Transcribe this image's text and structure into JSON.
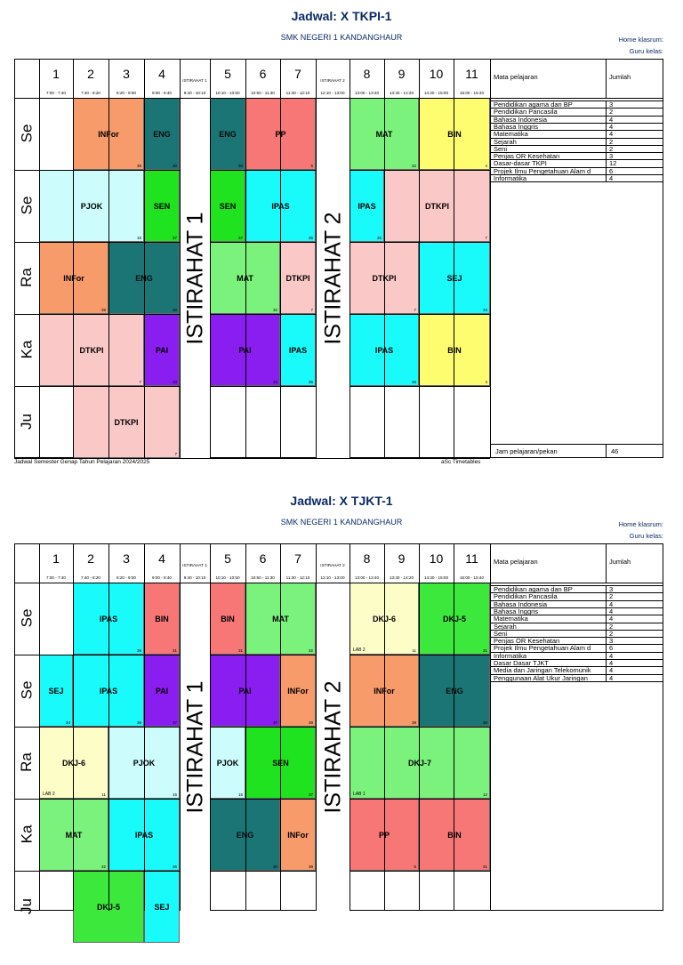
{
  "sheets": [
    {
      "title": "Jadwal: X TKPI-1",
      "school": "SMK NEGERI 1 KANDANGHAUR",
      "homeroom_label": "Home klasrum:",
      "teacher_label": "Guru kelas:",
      "periods": [
        {
          "n": "1",
          "t": "7:00 - 7:40"
        },
        {
          "n": "2",
          "t": "7:40 - 8:20"
        },
        {
          "n": "3",
          "t": "8:20 - 9:00"
        },
        {
          "n": "4",
          "t": "9:00 - 9:40"
        },
        {
          "n": "ISTIRAHAT 1",
          "t": "9:40 - 10:10",
          "brk": true
        },
        {
          "n": "5",
          "t": "10:10 - 10:50"
        },
        {
          "n": "6",
          "t": "10:50 - 11:30"
        },
        {
          "n": "7",
          "t": "11:30 - 12:10"
        },
        {
          "n": "ISTIRAHAT 2",
          "t": "12:10 - 13:00",
          "brk": true
        },
        {
          "n": "8",
          "t": "13:00 - 13:40"
        },
        {
          "n": "9",
          "t": "13:40 - 14:20"
        },
        {
          "n": "10",
          "t": "14:20 - 15:00"
        },
        {
          "n": "11",
          "t": "15:00 - 15:40"
        }
      ],
      "days": [
        "Se",
        "Se",
        "Ra",
        "Ka",
        "Ju"
      ],
      "break_labels": [
        "ISTIRAHAT 1",
        "ISTIRAHAT 2"
      ],
      "lessons": [
        {
          "d": 0,
          "s": 1,
          "e": 3,
          "name": "INFor",
          "room": "39",
          "color": "#f89b6b"
        },
        {
          "d": 0,
          "s": 3,
          "e": 4,
          "name": "ENG",
          "room": "30",
          "color": "#1b7575"
        },
        {
          "d": 0,
          "s": 5,
          "e": 6,
          "name": "ENG",
          "room": "30",
          "color": "#1b7575"
        },
        {
          "d": 0,
          "s": 6,
          "e": 8,
          "name": "PP",
          "room": "5",
          "color": "#f77777"
        },
        {
          "d": 0,
          "s": 9,
          "e": 11,
          "name": "MAT",
          "room": "32",
          "color": "#7bf27b"
        },
        {
          "d": 0,
          "s": 11,
          "e": 13,
          "name": "BIN",
          "room": "4",
          "color": "#fdfd6f"
        },
        {
          "d": 1,
          "s": 0,
          "e": 3,
          "name": "PJOK",
          "room": "15",
          "color": "#ccfcfc"
        },
        {
          "d": 1,
          "s": 3,
          "e": 4,
          "name": "SEN",
          "room": "37",
          "color": "#1ee31e"
        },
        {
          "d": 1,
          "s": 5,
          "e": 6,
          "name": "SEN",
          "room": "37",
          "color": "#1ee31e"
        },
        {
          "d": 1,
          "s": 6,
          "e": 8,
          "name": "IPAS",
          "room": "36",
          "color": "#19fafa"
        },
        {
          "d": 1,
          "s": 9,
          "e": 10,
          "name": "IPAS",
          "room": "36",
          "color": "#19fafa"
        },
        {
          "d": 1,
          "s": 10,
          "e": 13,
          "name": "DTKPI",
          "room": "7",
          "color": "#fbc8c8"
        },
        {
          "d": 2,
          "s": 0,
          "e": 2,
          "name": "INFor",
          "room": "39",
          "color": "#f89b6b"
        },
        {
          "d": 2,
          "s": 2,
          "e": 4,
          "name": "ENG",
          "room": "30",
          "color": "#1b7575"
        },
        {
          "d": 2,
          "s": 5,
          "e": 7,
          "name": "MAT",
          "room": "32",
          "color": "#7bf27b"
        },
        {
          "d": 2,
          "s": 7,
          "e": 8,
          "name": "DTKPI",
          "room": "7",
          "color": "#fbc8c8"
        },
        {
          "d": 2,
          "s": 9,
          "e": 11,
          "name": "DTKPI",
          "room": "7",
          "color": "#fbc8c8"
        },
        {
          "d": 2,
          "s": 11,
          "e": 13,
          "name": "SEJ",
          "room": "34",
          "color": "#19fafa"
        },
        {
          "d": 3,
          "s": 0,
          "e": 3,
          "name": "DTKPI",
          "room": "7",
          "color": "#fbc8c8"
        },
        {
          "d": 3,
          "s": 3,
          "e": 4,
          "name": "PAI",
          "room": "33",
          "color": "#8a1ef0"
        },
        {
          "d": 3,
          "s": 5,
          "e": 7,
          "name": "PAI",
          "room": "33",
          "color": "#8a1ef0"
        },
        {
          "d": 3,
          "s": 7,
          "e": 8,
          "name": "IPAS",
          "room": "36",
          "color": "#19fafa"
        },
        {
          "d": 3,
          "s": 9,
          "e": 11,
          "name": "IPAS",
          "room": "36",
          "color": "#19fafa"
        },
        {
          "d": 3,
          "s": 11,
          "e": 13,
          "name": "BIN",
          "room": "4",
          "color": "#fdfd6f"
        },
        {
          "d": 4,
          "s": 1,
          "e": 4,
          "name": "DTKPI",
          "room": "7",
          "color": "#fbc8c8"
        }
      ],
      "subjects_header": "Mata pelajaran",
      "count_header": "Jumlah",
      "subjects": [
        {
          "n": "Pendidikan agama dan BP",
          "c": "3"
        },
        {
          "n": "Pendidikan Pancasila",
          "c": "2"
        },
        {
          "n": "Bahasa Indonesia",
          "c": "4"
        },
        {
          "n": "Bahasa Inggris",
          "c": "4"
        },
        {
          "n": "Matematika",
          "c": "4"
        },
        {
          "n": "Sejarah",
          "c": "2"
        },
        {
          "n": "Seni",
          "c": "2"
        },
        {
          "n": "Penjas OR Kesehatan",
          "c": "3"
        },
        {
          "n": "Dasar-dasar TKPI",
          "c": "12"
        },
        {
          "n": "Projek Ilmu Pengetahuan Alam d",
          "c": "6"
        },
        {
          "n": "Informatika",
          "c": "4"
        }
      ],
      "total_label": "Jam pelajaran/pekan",
      "total_value": "46",
      "footer_left": "Jadwal Semester Genap Tahun Pelajaran 2024/2025",
      "footer_right": "aSc Timetables"
    },
    {
      "title": "Jadwal: X TJKT-1",
      "school": "SMK NEGERI 1 KANDANGHAUR",
      "homeroom_label": "Home klasrum:",
      "teacher_label": "Guru kelas:",
      "periods": [
        {
          "n": "1",
          "t": "7:00 - 7:40"
        },
        {
          "n": "2",
          "t": "7:40 - 8:20"
        },
        {
          "n": "3",
          "t": "8:20 - 9:00"
        },
        {
          "n": "4",
          "t": "9:00 - 9:40"
        },
        {
          "n": "ISTIRAHAT 1",
          "t": "9:40 - 10:10",
          "brk": true
        },
        {
          "n": "5",
          "t": "10:10 - 10:50"
        },
        {
          "n": "6",
          "t": "10:50 - 11:30"
        },
        {
          "n": "7",
          "t": "11:30 - 12:10"
        },
        {
          "n": "ISTIRAHAT 2",
          "t": "12:10 - 13:00",
          "brk": true
        },
        {
          "n": "8",
          "t": "13:00 - 13:40"
        },
        {
          "n": "9",
          "t": "13:40 - 14:20"
        },
        {
          "n": "10",
          "t": "14:20 - 15:00"
        },
        {
          "n": "11",
          "t": "15:00 - 15:40"
        }
      ],
      "days": [
        "Se",
        "Se",
        "Ra",
        "Ka",
        "Ju"
      ],
      "break_labels": [
        "ISTIRAHAT 1",
        "ISTIRAHAT 2"
      ],
      "lessons": [
        {
          "d": 0,
          "s": 1,
          "e": 3,
          "name": "IPAS",
          "room": "36",
          "color": "#19fafa"
        },
        {
          "d": 0,
          "s": 3,
          "e": 4,
          "name": "BIN",
          "room": "31",
          "color": "#f77777"
        },
        {
          "d": 0,
          "s": 5,
          "e": 6,
          "name": "BIN",
          "room": "31",
          "color": "#f77777"
        },
        {
          "d": 0,
          "s": 6,
          "e": 8,
          "name": "MAT",
          "room": "32",
          "color": "#7bf27b"
        },
        {
          "d": 0,
          "s": 9,
          "e": 11,
          "name": "DKJ-6",
          "room": "11",
          "lab": "LAB 2",
          "color": "#fdfdc8"
        },
        {
          "d": 0,
          "s": 11,
          "e": 13,
          "name": "DKJ-5",
          "room": "31",
          "color": "#3de83d"
        },
        {
          "d": 1,
          "s": 0,
          "e": 1,
          "name": "SEJ",
          "room": "24",
          "color": "#19fafa"
        },
        {
          "d": 1,
          "s": 1,
          "e": 3,
          "name": "IPAS",
          "room": "36",
          "color": "#19fafa"
        },
        {
          "d": 1,
          "s": 3,
          "e": 4,
          "name": "PAI",
          "room": "37",
          "color": "#8a1ef0"
        },
        {
          "d": 1,
          "s": 5,
          "e": 7,
          "name": "PAI",
          "room": "37",
          "color": "#8a1ef0"
        },
        {
          "d": 1,
          "s": 7,
          "e": 8,
          "name": "INFor",
          "room": "39",
          "color": "#f89b6b"
        },
        {
          "d": 1,
          "s": 9,
          "e": 11,
          "name": "INFor",
          "room": "39",
          "color": "#f89b6b"
        },
        {
          "d": 1,
          "s": 11,
          "e": 13,
          "name": "ENG",
          "room": "30",
          "color": "#1b7575"
        },
        {
          "d": 2,
          "s": 0,
          "e": 2,
          "name": "DKJ-6",
          "room": "11",
          "lab": "LAB 2",
          "color": "#fdfdc8"
        },
        {
          "d": 2,
          "s": 2,
          "e": 4,
          "name": "PJOK",
          "room": "15",
          "color": "#ccfcfc"
        },
        {
          "d": 2,
          "s": 5,
          "e": 6,
          "name": "PJOK",
          "room": "15",
          "color": "#ccfcfc"
        },
        {
          "d": 2,
          "s": 6,
          "e": 8,
          "name": "SEN",
          "room": "37",
          "color": "#1ee31e"
        },
        {
          "d": 2,
          "s": 9,
          "e": 13,
          "name": "DKJ-7",
          "room": "12",
          "lab": "LAB 1",
          "color": "#7bf27b"
        },
        {
          "d": 3,
          "s": 0,
          "e": 2,
          "name": "MAT",
          "room": "32",
          "color": "#7bf27b"
        },
        {
          "d": 3,
          "s": 2,
          "e": 4,
          "name": "IPAS",
          "room": "36",
          "color": "#19fafa"
        },
        {
          "d": 3,
          "s": 5,
          "e": 7,
          "name": "ENG",
          "room": "30",
          "color": "#1b7575"
        },
        {
          "d": 3,
          "s": 7,
          "e": 8,
          "name": "INFor",
          "room": "39",
          "color": "#f89b6b"
        },
        {
          "d": 3,
          "s": 9,
          "e": 11,
          "name": "PP",
          "room": "5",
          "color": "#f77777"
        },
        {
          "d": 3,
          "s": 11,
          "e": 13,
          "name": "BIN",
          "room": "31",
          "color": "#f77777"
        },
        {
          "d": 4,
          "s": 1,
          "e": 3,
          "name": "DKJ-5",
          "room": "",
          "color": "#3de83d"
        },
        {
          "d": 4,
          "s": 3,
          "e": 4,
          "name": "SEJ",
          "room": "",
          "color": "#19fafa"
        }
      ],
      "subjects_header": "Mata pelajaran",
      "count_header": "Jumlah",
      "subjects": [
        {
          "n": "Pendidikan agama dan BP",
          "c": "3"
        },
        {
          "n": "Pendidikan Pancasila",
          "c": "2"
        },
        {
          "n": "Bahasa Indonesia",
          "c": "4"
        },
        {
          "n": "Bahasa Inggris",
          "c": "4"
        },
        {
          "n": "Matematika",
          "c": "4"
        },
        {
          "n": "Sejarah",
          "c": "2"
        },
        {
          "n": "Seni",
          "c": "2"
        },
        {
          "n": "Penjas OR Kesehatan",
          "c": "3"
        },
        {
          "n": "Projek Ilmu Pengetahuan Alam d",
          "c": "6"
        },
        {
          "n": "Informatika",
          "c": "4"
        },
        {
          "n": "Dasar Dasar TJKT",
          "c": "4"
        },
        {
          "n": "Media dan Jaringan Telekomunik",
          "c": "4"
        },
        {
          "n": "Penggunaan Alat Ukur Jaringan",
          "c": "4"
        }
      ],
      "total_label": "",
      "total_value": "",
      "footer_left": "",
      "footer_right": ""
    }
  ]
}
